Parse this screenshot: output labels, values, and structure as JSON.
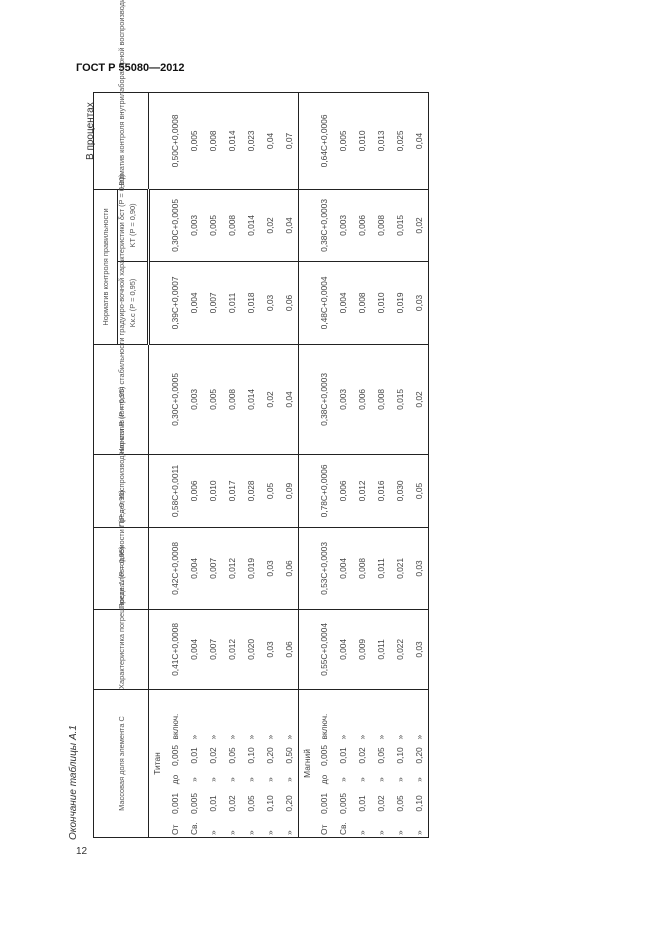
{
  "header": {
    "standard": "ГОСТ Р 55080—2012",
    "page_number": "12"
  },
  "caption": "Окончание таблицы А.1",
  "unit": "В процентах",
  "columns": {
    "mass": "Массовая доля элемента С",
    "delta": "Характеристика погрешности Δ (P = 0,95)",
    "r": "Предел повторяемости r (P = 0,95)",
    "R": "Предел воспроизводимо-сти R (P = 0,95)",
    "dst": "Норматив контроля стабильности градуиро-вочной характеристики δст (P = 0,90)",
    "kgroup": "Норматив контроля правильности",
    "kkc": "Kк.с (P = 0,95)",
    "kt": "KТ (P = 0,90)",
    "rl": "Норматив контроля внутрилабораторной воспроизводимости Rл (P = 0,95)"
  },
  "sections": [
    {
      "name": "Титан",
      "rows": [
        [
          "От",
          "0,001",
          "до",
          "0,005",
          "включ.",
          "0,41С+0,0008",
          "0,42С+0,0008",
          "0,58С+0,0011",
          "0,30С+0,0005",
          "0,39С+0,0007",
          "0,30С+0,0005",
          "0,50С+0,0008"
        ],
        [
          "Св.",
          "0,005",
          "»",
          "0,01",
          "»",
          "0,004",
          "0,004",
          "0,006",
          "0,003",
          "0,004",
          "0,003",
          "0,005"
        ],
        [
          "»",
          "0,01",
          "»",
          "0,02",
          "»",
          "0,007",
          "0,007",
          "0,010",
          "0,005",
          "0,007",
          "0,005",
          "0,008"
        ],
        [
          "»",
          "0,02",
          "»",
          "0,05",
          "»",
          "0,012",
          "0,012",
          "0,017",
          "0,008",
          "0,011",
          "0,008",
          "0,014"
        ],
        [
          "»",
          "0,05",
          "»",
          "0,10",
          "»",
          "0,020",
          "0,019",
          "0,028",
          "0,014",
          "0,018",
          "0,014",
          "0,023"
        ],
        [
          "»",
          "0,10",
          "»",
          "0,20",
          "»",
          "0,03",
          "0,03",
          "0,05",
          "0,02",
          "0,03",
          "0,02",
          "0,04"
        ],
        [
          "»",
          "0,20",
          "»",
          "0,50",
          "»",
          "0,06",
          "0,06",
          "0,09",
          "0,04",
          "0,06",
          "0,04",
          "0,07"
        ]
      ]
    },
    {
      "name": "Магний",
      "rows": [
        [
          "От",
          "0,001",
          "до",
          "0,005",
          "включ.",
          "0,55С+0,0004",
          "0,53С+0,0003",
          "0,78С+0,0006",
          "0,38С+0,0003",
          "0,48С+0,0004",
          "0,38С+0,0003",
          "0,64С+0,0006"
        ],
        [
          "Св.",
          "0,005",
          "»",
          "0,01",
          "»",
          "0,004",
          "0,004",
          "0,006",
          "0,003",
          "0,004",
          "0,003",
          "0,005"
        ],
        [
          "»",
          "0,01",
          "»",
          "0,02",
          "»",
          "0,009",
          "0,008",
          "0,012",
          "0,006",
          "0,008",
          "0,006",
          "0,010"
        ],
        [
          "»",
          "0,02",
          "»",
          "0,05",
          "»",
          "0,011",
          "0,011",
          "0,016",
          "0,008",
          "0,010",
          "0,008",
          "0,013"
        ],
        [
          "»",
          "0,05",
          "»",
          "0,10",
          "»",
          "0,022",
          "0,021",
          "0,030",
          "0,015",
          "0,019",
          "0,015",
          "0,025"
        ],
        [
          "»",
          "0,10",
          "»",
          "0,20",
          "»",
          "0,03",
          "0,03",
          "0,05",
          "0,02",
          "0,03",
          "0,02",
          "0,04"
        ]
      ]
    }
  ]
}
